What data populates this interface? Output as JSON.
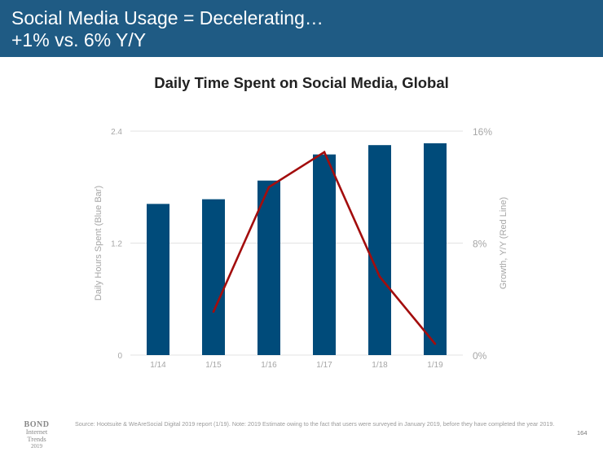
{
  "header": {
    "title_line1": "Social Media Usage = Decelerating…",
    "title_line2": "+1% vs. 6% Y/Y"
  },
  "chart_data": {
    "type": "bar",
    "title": "Daily Time Spent on Social Media, Global",
    "categories": [
      "1/14",
      "1/15",
      "1/16",
      "1/17",
      "1/18",
      "1/19"
    ],
    "series": [
      {
        "name": "Daily Hours Spent (Blue Bar)",
        "type": "bar",
        "axis": "left",
        "color": "#004b7a",
        "values": [
          1.62,
          1.67,
          1.87,
          2.15,
          2.25,
          2.27
        ]
      },
      {
        "name": "Growth, Y/Y (Red Line)",
        "type": "line",
        "axis": "right",
        "color": "#a30d0d",
        "values": [
          null,
          3.1,
          12.0,
          14.5,
          5.6,
          0.8
        ]
      }
    ],
    "ylabel_left": "Daily Hours Spent (Blue Bar)",
    "ylabel_right": "Growth, Y/Y (Red Line)",
    "ylim_left": [
      0,
      2.4
    ],
    "ylim_right": [
      0,
      16
    ],
    "yticks_left": [
      "0",
      "1.2",
      "2.4"
    ],
    "yticks_right": [
      "0%",
      "8%",
      "16%"
    ],
    "grid": true,
    "legend": "none"
  },
  "footer": {
    "source": "Source: Hootsuite & WeAreSocial Digital 2019 report (1/19).  Note: 2019 Estimate owing to the fact that users were surveyed in January 2019, before they have completed the year 2019.",
    "page_number": "164",
    "logo_line1": "BOND",
    "logo_line2": "Internet Trends",
    "logo_line3": "2019"
  }
}
